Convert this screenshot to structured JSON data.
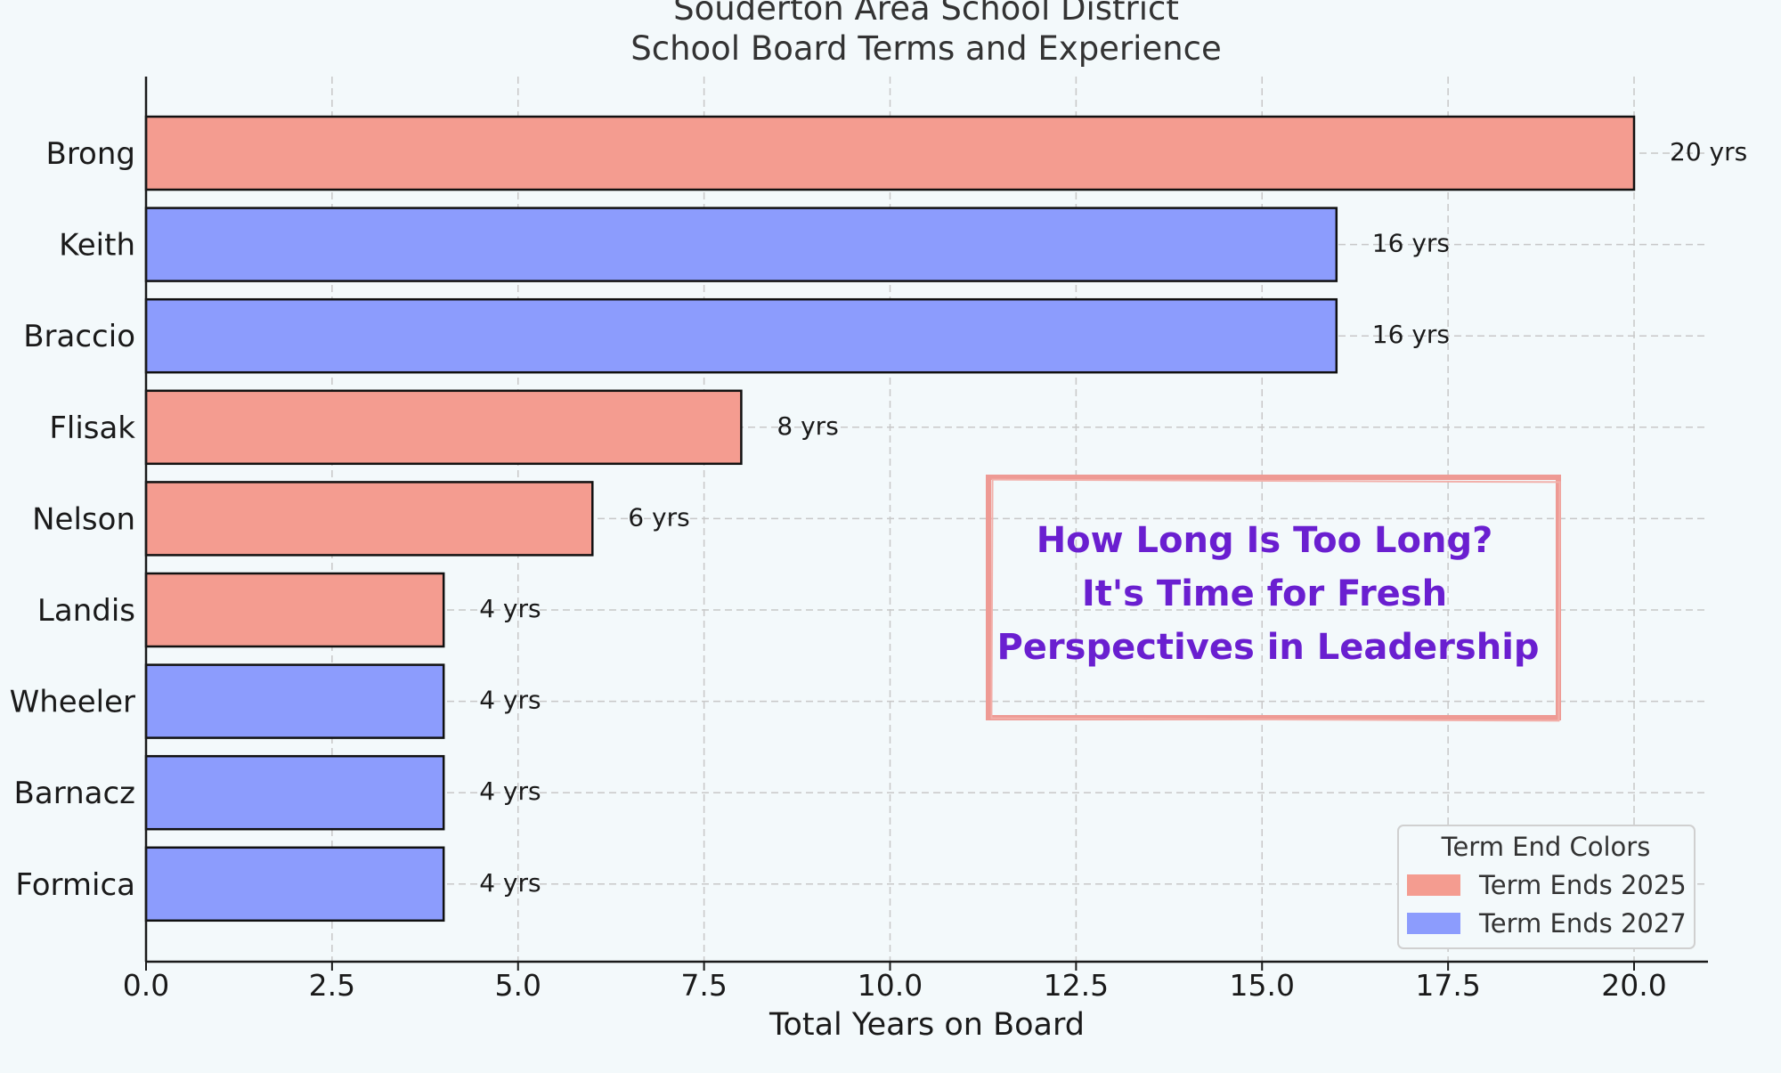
{
  "chart_data": {
    "type": "bar",
    "orientation": "horizontal",
    "title": "Souderton Area School District",
    "subtitle": "School Board Terms and Experience",
    "xlabel": "Total Years on Board",
    "ylabel": "",
    "xlim": [
      0,
      21
    ],
    "xticks": [
      0,
      2.5,
      5,
      7.5,
      10,
      12.5,
      15,
      17.5,
      20
    ],
    "xtick_labels": [
      "0.0",
      "2.5",
      "5.0",
      "7.5",
      "10.0",
      "12.5",
      "15.0",
      "17.5",
      "20.0"
    ],
    "grid": true,
    "categories": [
      "Brong",
      "Keith",
      "Braccio",
      "Flisak",
      "Nelson",
      "Landis",
      "Wheeler",
      "Barnacz",
      "Formica"
    ],
    "values": [
      20,
      16,
      16,
      8,
      6,
      4,
      4,
      4,
      4
    ],
    "value_labels": [
      "20 yrs",
      "16 yrs",
      "16 yrs",
      "8 yrs",
      "6 yrs",
      "4 yrs",
      "4 yrs",
      "4 yrs",
      "4 yrs"
    ],
    "term_end": [
      "Term Ends 2025",
      "Term Ends 2027",
      "Term Ends 2027",
      "Term Ends 2025",
      "Term Ends 2025",
      "Term Ends 2025",
      "Term Ends 2027",
      "Term Ends 2027",
      "Term Ends 2027"
    ],
    "legend": {
      "title": "Term End Colors",
      "placement": "bottom-right",
      "entries": [
        {
          "label": "Term Ends 2025",
          "color": "#f49c90"
        },
        {
          "label": "Term Ends 2027",
          "color": "#8c9cfd"
        }
      ]
    },
    "annotation": {
      "lines": [
        "How Long Is Too Long?",
        "It's Time for Fresh",
        "Perspectives in Leadership"
      ],
      "text_color": "#6a1fd0",
      "border_color": "#ee9a94"
    }
  }
}
